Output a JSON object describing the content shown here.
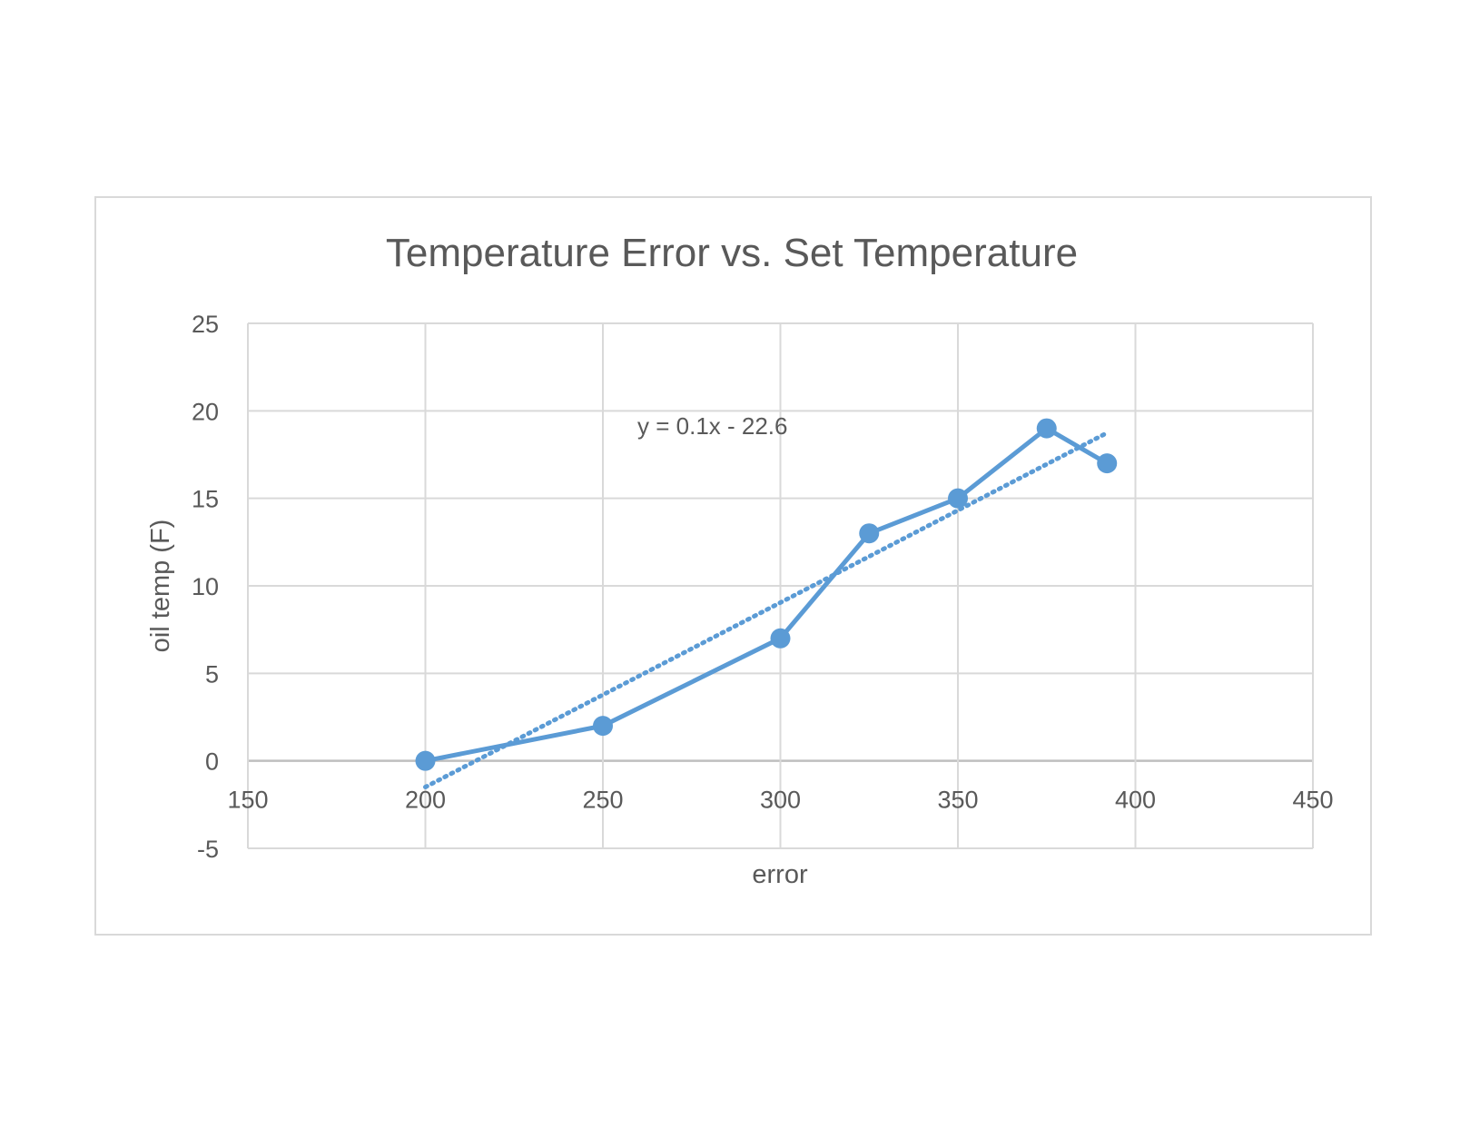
{
  "chart_data": {
    "type": "scatter",
    "title": "Temperature Error vs. Set Temperature",
    "xlabel": "error",
    "ylabel": "oil temp (F)",
    "xlim": [
      150,
      450
    ],
    "ylim": [
      -5,
      25
    ],
    "x_ticks": [
      150,
      200,
      250,
      300,
      350,
      400,
      450
    ],
    "y_ticks": [
      -5,
      0,
      5,
      10,
      15,
      20,
      25
    ],
    "grid": true,
    "legend": "none",
    "series": [
      {
        "x": [
          200,
          250,
          300,
          325,
          350,
          375,
          392
        ],
        "y": [
          0,
          2,
          7,
          13,
          15,
          19,
          17
        ],
        "style": "line+markers",
        "color": "#5b9bd5"
      }
    ],
    "trendline": {
      "type": "linear",
      "style": "dotted",
      "color": "#5b9bd5",
      "x_range": [
        200,
        392
      ],
      "equation": "y = 0.1x - 22.6"
    }
  }
}
